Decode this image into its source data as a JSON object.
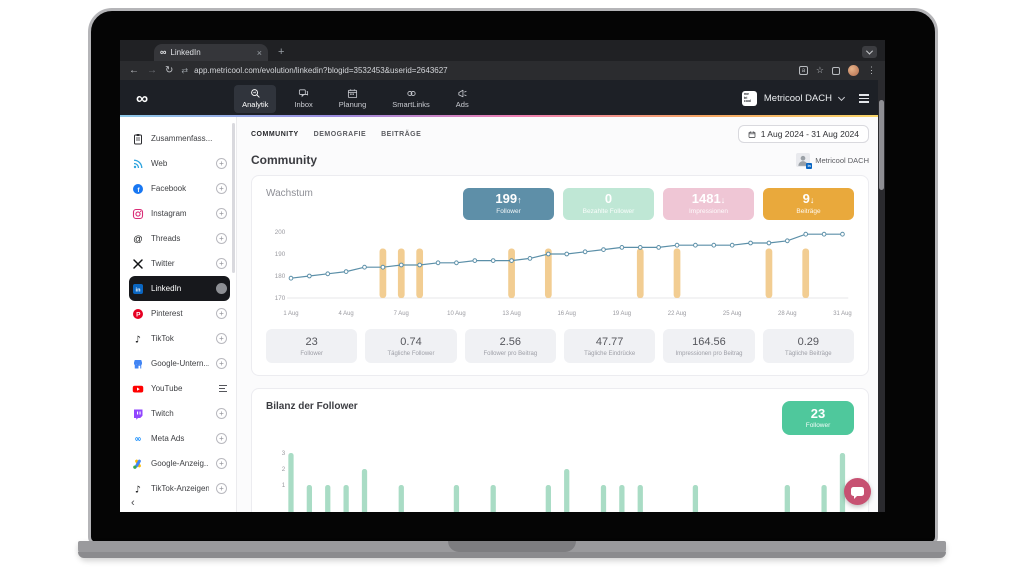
{
  "browser": {
    "tab_title": "LinkedIn",
    "tab_close": "×",
    "new_tab": "+",
    "favicon": "∞",
    "back": "←",
    "forward": "→",
    "reload": "↻",
    "site_icon": "⇄",
    "url": "app.metricool.com/evolution/linkedin?blogid=3532453&userid=2643627"
  },
  "app_header": {
    "logo": "∞",
    "nav": [
      {
        "label": "Analytik"
      },
      {
        "label": "Inbox"
      },
      {
        "label": "Planung"
      },
      {
        "label": "SmartLinks"
      },
      {
        "label": "Ads"
      }
    ],
    "account_name": "Metricool DACH",
    "chip_lines": [
      "me",
      "tri",
      "cool"
    ]
  },
  "sidebar": {
    "items": [
      {
        "label": "Zusammenfass..."
      },
      {
        "label": "Web"
      },
      {
        "label": "Facebook"
      },
      {
        "label": "Instagram"
      },
      {
        "label": "Threads"
      },
      {
        "label": "Twitter"
      },
      {
        "label": "LinkedIn"
      },
      {
        "label": "Pinterest"
      },
      {
        "label": "TikTok"
      },
      {
        "label": "Google-Untern..."
      },
      {
        "label": "YouTube"
      },
      {
        "label": "Twitch"
      },
      {
        "label": "Meta Ads"
      },
      {
        "label": "Google-Anzeig..."
      },
      {
        "label": "TikTok-Anzeigen"
      }
    ],
    "collapse": "‹"
  },
  "page": {
    "tabs": [
      {
        "label": "COMMUNITY"
      },
      {
        "label": "DEMOGRAFIE"
      },
      {
        "label": "BEITRÄGE"
      }
    ],
    "date_range": "1 Aug 2024 - 31 Aug 2024",
    "title": "Community",
    "account_label": "Metricool DACH"
  },
  "growth": {
    "title": "Wachstum",
    "badges": [
      {
        "value": "199",
        "arrow": "↑",
        "label": "Follower",
        "color": "#5e8fa8"
      },
      {
        "value": "0",
        "arrow": "",
        "label": "Bezahlte Follower",
        "color": "#bfe7d5"
      },
      {
        "value": "1481",
        "arrow": "↓",
        "label": "Impressionen",
        "color": "#efc6d5"
      },
      {
        "value": "9",
        "arrow": "↓",
        "label": "Beiträge",
        "color": "#e9a93c"
      }
    ],
    "stats": [
      {
        "value": "23",
        "label": "Follower"
      },
      {
        "value": "0.74",
        "label": "Tägliche Follower"
      },
      {
        "value": "2.56",
        "label": "Follower pro Beitrag"
      },
      {
        "value": "47.77",
        "label": "Tägliche Eindrücke"
      },
      {
        "value": "164.56",
        "label": "Impressionen pro Beitrag"
      },
      {
        "value": "0.29",
        "label": "Tägliche Beiträge"
      }
    ]
  },
  "balance": {
    "title": "Bilanz der Follower",
    "badge": {
      "value": "23",
      "label": "Follower"
    }
  },
  "chart_data": [
    {
      "type": "line",
      "title": "Wachstum",
      "series": [
        {
          "name": "Follower",
          "values": [
            179,
            180,
            181,
            182,
            184,
            184,
            185,
            185,
            186,
            186,
            187,
            187,
            187,
            188,
            190,
            190,
            191,
            192,
            193,
            193,
            193,
            194,
            194,
            194,
            194,
            195,
            195,
            196,
            199,
            199,
            199
          ]
        }
      ],
      "post_marker_days": [
        6,
        7,
        8,
        13,
        15,
        20,
        22,
        27,
        29
      ],
      "post_marker_top": 192.5,
      "ylim": [
        170,
        200
      ],
      "yticks": [
        200,
        190,
        180,
        170
      ],
      "xticks": [
        "1 Aug",
        "4 Aug",
        "7 Aug",
        "10 Aug",
        "13 Aug",
        "16 Aug",
        "19 Aug",
        "22 Aug",
        "25 Aug",
        "28 Aug",
        "31 Aug"
      ],
      "xtick_days": [
        1,
        4,
        7,
        10,
        13,
        16,
        19,
        22,
        25,
        28,
        31
      ],
      "colors": {
        "line": "#5b8fa8",
        "marker_fill": "#ffffff",
        "post_bar": "#f2cd92",
        "axis_text": "#9a9aa0",
        "grid": "#e7e7ea"
      }
    },
    {
      "type": "bar",
      "title": "Bilanz der Follower",
      "values": [
        3,
        1,
        1,
        1,
        2,
        0,
        1,
        0,
        0,
        1,
        0,
        1,
        0,
        0,
        1,
        2,
        0,
        1,
        1,
        1,
        0,
        0,
        1,
        0,
        0,
        0,
        0,
        1,
        0,
        1,
        3
      ],
      "ylim": [
        0,
        3
      ],
      "yticks": [
        3,
        2,
        1
      ],
      "colors": {
        "bar": "#a9dcc5",
        "axis_text": "#9a9aa0",
        "badge": "#4fc89c"
      }
    }
  ]
}
